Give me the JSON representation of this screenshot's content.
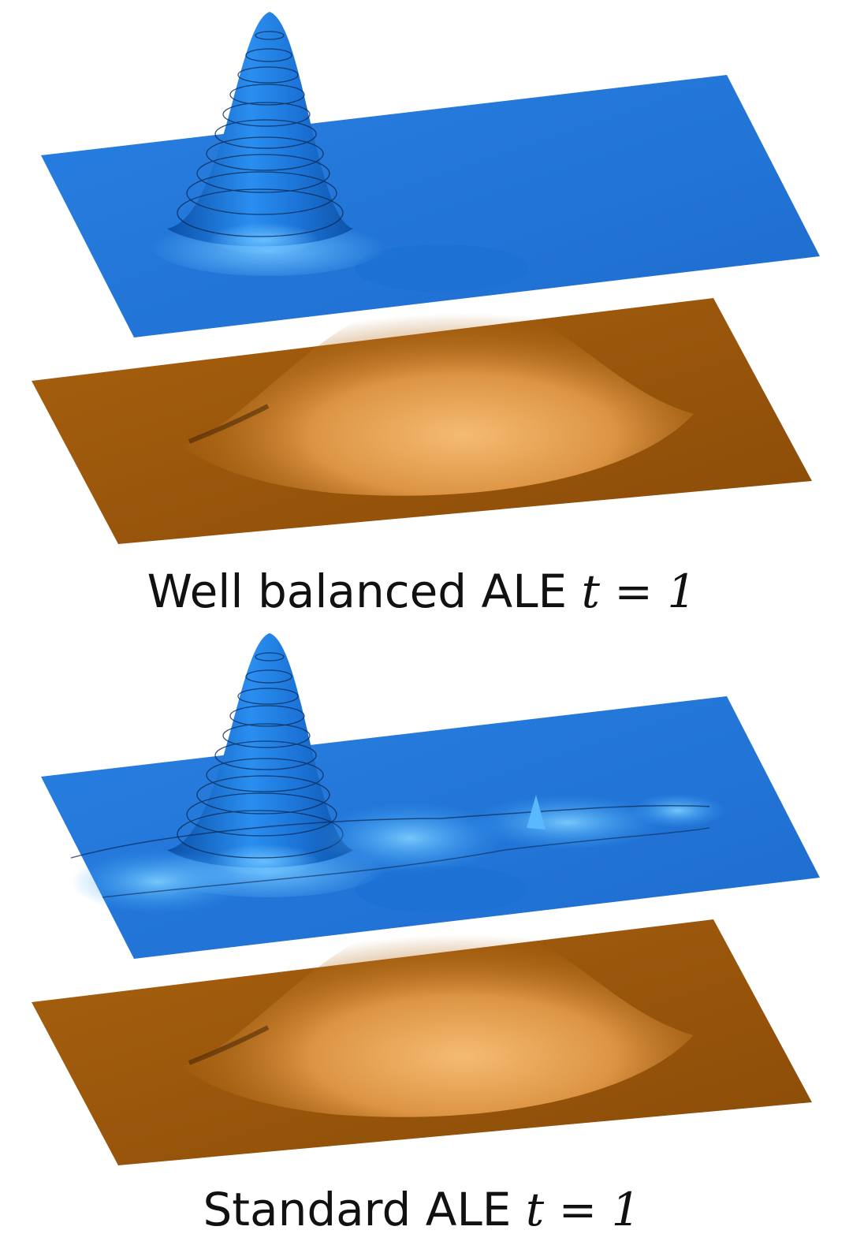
{
  "panels": [
    {
      "caption": "Well balanced ALE",
      "time": "t = 1"
    },
    {
      "caption": "Standard ALE",
      "time": "t = 1"
    }
  ]
}
